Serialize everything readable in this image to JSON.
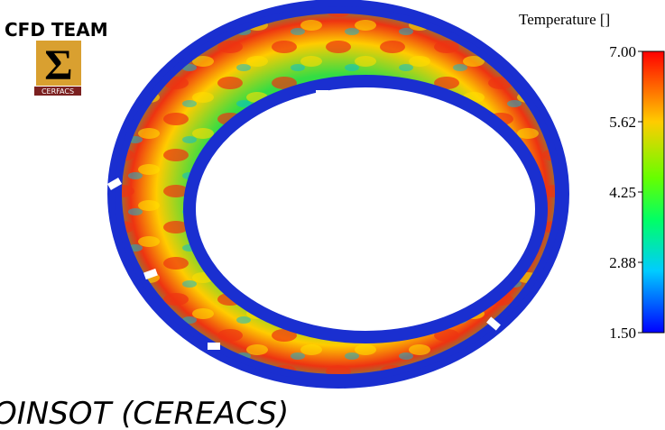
{
  "logo": {
    "title": "CFD TEAM",
    "subtitle": "CERFACS"
  },
  "colorbar": {
    "title": "Temperature []",
    "ticks": [
      "7.00",
      "5.62",
      "4.25",
      "2.88",
      "1.50"
    ]
  },
  "caption": "OINSOT (CEREACS)"
}
